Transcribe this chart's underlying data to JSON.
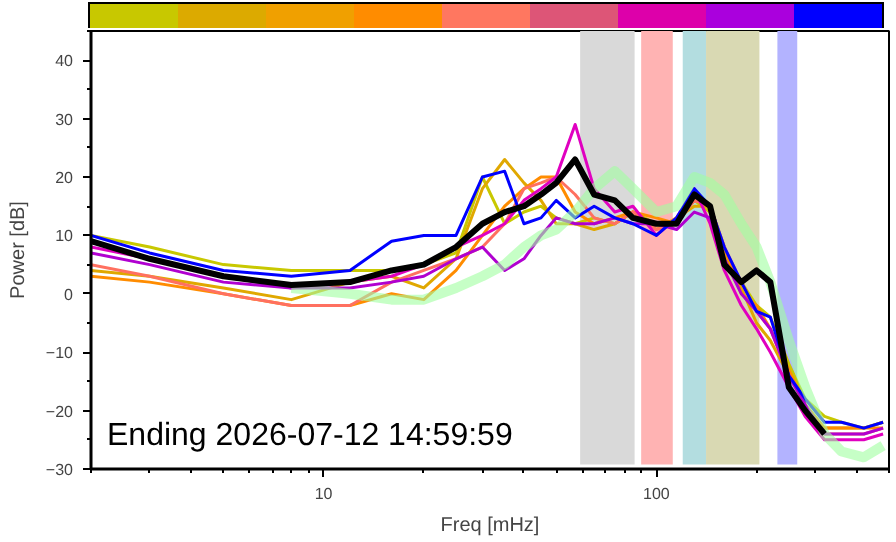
{
  "chart_data": {
    "type": "line",
    "xlabel": "Freq [mHz]",
    "ylabel": "Power [dB]",
    "log": "x",
    "xlim": [
      2,
      500
    ],
    "ylim": [
      -30,
      45
    ],
    "xticks": [
      10,
      100
    ],
    "yticks": [
      -30,
      -20,
      -10,
      0,
      10,
      20,
      30,
      40
    ],
    "grid": false,
    "marker": "none",
    "line_style": "solid",
    "annotations": [
      "Ending 2026-07-12 14:59:59"
    ],
    "bands": [
      {
        "axis": "x",
        "from": 59,
        "to": 86,
        "color": "#d9d9d9"
      },
      {
        "axis": "x",
        "from": 90,
        "to": 112,
        "color": "#ffb3b3"
      },
      {
        "axis": "x",
        "from": 120,
        "to": 141,
        "color": "#b3dde0"
      },
      {
        "axis": "x",
        "from": 141,
        "to": 204,
        "color": "#d9d9b3"
      },
      {
        "axis": "x",
        "from": 231,
        "to": 265,
        "color": "#b3b3ff"
      }
    ],
    "x": [
      2,
      3,
      5,
      8,
      12,
      16,
      20,
      25,
      30,
      35,
      40,
      45,
      50,
      57,
      65,
      75,
      85,
      100,
      115,
      130,
      145,
      160,
      180,
      200,
      220,
      250,
      280,
      320,
      360,
      420,
      480
    ],
    "series": [
      {
        "color": "#c8c800",
        "values": [
          10,
          8,
          5,
          4,
          4,
          4,
          5,
          7,
          20,
          12,
          14,
          15,
          13,
          12,
          13,
          12,
          14,
          12,
          12,
          16,
          14,
          6,
          2,
          -2,
          -4,
          -12,
          -18,
          -21,
          -22,
          -23,
          -22
        ]
      },
      {
        "color": "#e0a800",
        "values": [
          4,
          3,
          1,
          -1,
          2,
          3,
          1,
          6,
          18,
          23,
          19,
          16,
          12,
          12,
          11,
          12,
          14,
          11,
          13,
          15,
          15,
          7,
          1,
          -5,
          -8,
          -14,
          -19,
          -23,
          -23,
          -23,
          -22
        ]
      },
      {
        "color": "#ff8c00",
        "values": [
          3,
          2,
          0,
          -2,
          -2,
          0,
          -1,
          4,
          10,
          15,
          18,
          20,
          20,
          14,
          12,
          13,
          14,
          13,
          12,
          17,
          15,
          8,
          0,
          -2,
          -6,
          -13,
          -19,
          -23,
          -23,
          -23,
          -23
        ]
      },
      {
        "color": "#ff7060",
        "values": [
          5,
          3,
          0,
          -2,
          -2,
          2,
          4,
          6,
          8,
          12,
          18,
          19,
          20,
          17,
          13,
          12,
          14,
          11,
          12,
          16,
          15,
          8,
          2,
          -3,
          -6,
          -14,
          -19,
          -24,
          -24,
          -24,
          -23
        ]
      },
      {
        "color": "#e000c0",
        "values": [
          8,
          6,
          3,
          1,
          2,
          3,
          5,
          8,
          10,
          12,
          16,
          18,
          20,
          29,
          18,
          14,
          15,
          10,
          13,
          18,
          12,
          4,
          -2,
          -6,
          -10,
          -16,
          -21,
          -25,
          -25,
          -25,
          -24
        ]
      },
      {
        "color": "#b000d0",
        "values": [
          7,
          5,
          2,
          1,
          1,
          2,
          3,
          6,
          8,
          4,
          6,
          10,
          13,
          12,
          12,
          13,
          12,
          12,
          11,
          14,
          13,
          6,
          0,
          -3,
          -6,
          -14,
          -19,
          -24,
          -24,
          -24,
          -23
        ]
      },
      {
        "color": "#0000ff",
        "values": [
          10,
          7,
          4,
          3,
          4,
          9,
          10,
          10,
          20,
          21,
          12,
          13,
          16,
          13,
          15,
          13,
          12,
          10,
          13,
          18,
          15,
          8,
          2,
          -3,
          -4,
          -14,
          -18,
          -22,
          -22,
          -23,
          -22
        ]
      },
      {
        "color": "#a0ffa0",
        "values": [
          null,
          null,
          null,
          1,
          0,
          -1,
          -1,
          1,
          3,
          5,
          8,
          10,
          11,
          14,
          18,
          21,
          18,
          14,
          15,
          20,
          19,
          17,
          12,
          8,
          2,
          -8,
          -16,
          -24,
          -27,
          -28,
          -26
        ]
      },
      {
        "color": "#000000",
        "values": [
          9,
          6,
          3,
          1.5,
          2,
          4,
          5,
          8,
          12,
          14,
          15,
          17,
          19,
          23,
          17,
          16,
          13,
          12,
          12,
          17,
          15,
          5,
          2,
          4,
          2,
          -16,
          -20,
          -24,
          null,
          null,
          null
        ]
      }
    ]
  }
}
